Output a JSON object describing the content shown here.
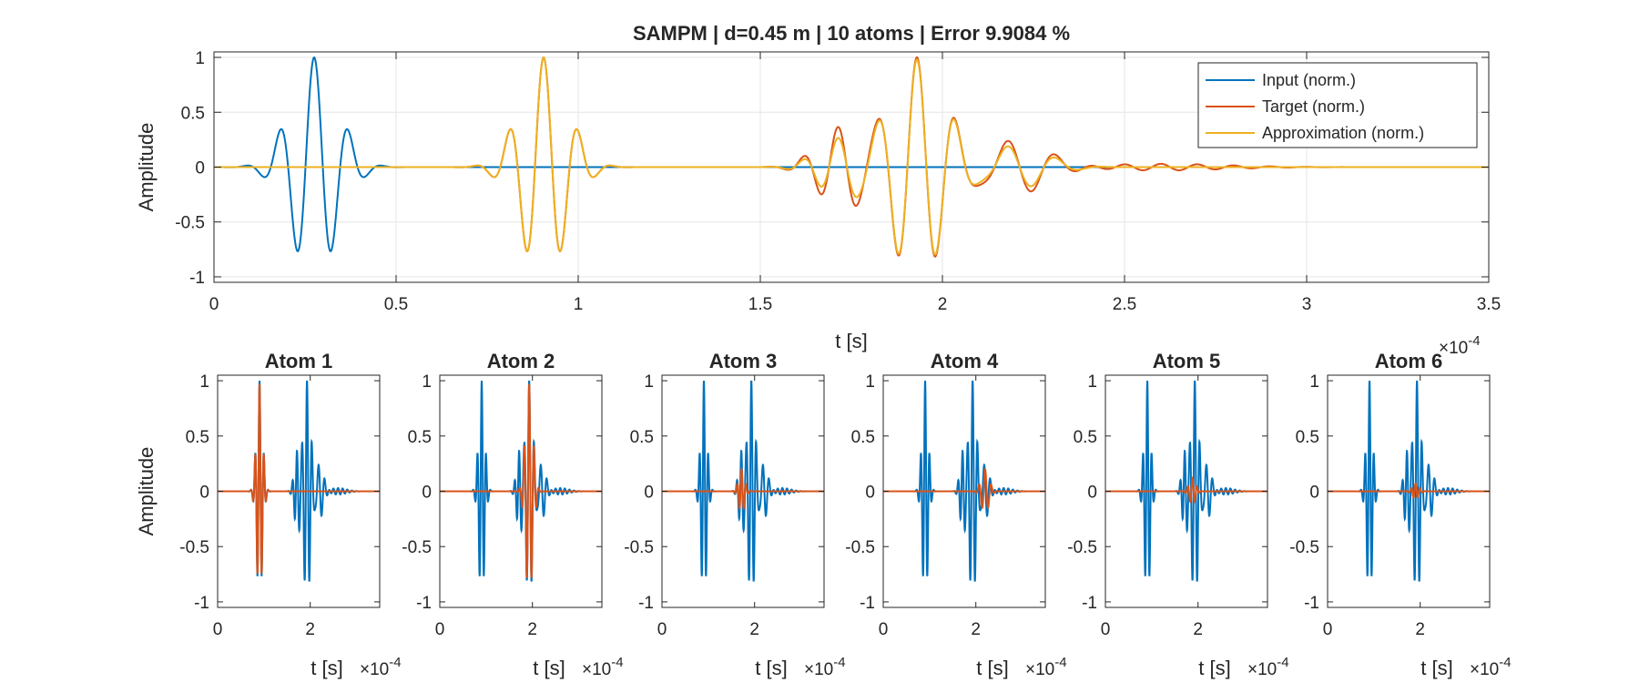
{
  "chart_data": {
    "main": {
      "type": "line",
      "title": "SAMPM | d=0.45 m | 10 atoms | Error 9.9084 %",
      "xlabel": "t [s]",
      "ylabel": "Amplitude",
      "x_exponent": "×10",
      "x_exponent_power": "-4",
      "xlim": [
        0,
        3.5
      ],
      "ylim": [
        -1.05,
        1.05
      ],
      "xticks": [
        0,
        0.5,
        1,
        1.5,
        2,
        2.5,
        3,
        3.5
      ],
      "xtick_labels": [
        "0",
        "0.5",
        "1",
        "1.5",
        "2",
        "2.5",
        "3",
        "3.5"
      ],
      "yticks": [
        -1,
        -0.5,
        0,
        0.5,
        1
      ],
      "ytick_labels": [
        "-1",
        "-0.5",
        "0",
        "0.5",
        "1"
      ],
      "grid": true,
      "legend_position": "top-right",
      "series": [
        {
          "name": "Input (norm.)",
          "color": "#0072BD",
          "bursts": [
            {
              "center": 0.275,
              "width": 0.09,
              "freq": 10.5,
              "amp": 1.0,
              "phase": 0.0
            }
          ]
        },
        {
          "name": "Target (norm.)",
          "color": "#D95319",
          "bursts": [
            {
              "center": 0.905,
              "width": 0.09,
              "freq": 10.5,
              "amp": 1.0,
              "phase": 0.0
            },
            {
              "center": 1.72,
              "width": 0.09,
              "freq": 10.5,
              "amp": 0.35,
              "phase": 0.5
            },
            {
              "center": 1.93,
              "width": 0.11,
              "freq": 9.6,
              "amp": 1.0,
              "phase": 0.0
            },
            {
              "center": 2.2,
              "width": 0.12,
              "freq": 7.5,
              "amp": 0.25,
              "phase": 1.0
            },
            {
              "center": 2.6,
              "width": 0.25,
              "freq": 10.0,
              "amp": 0.03,
              "phase": 0.0
            }
          ]
        },
        {
          "name": "Approximation (norm.)",
          "color": "#EDB120",
          "bursts": [
            {
              "center": 0.905,
              "width": 0.09,
              "freq": 10.5,
              "amp": 1.0,
              "phase": 0.0
            },
            {
              "center": 1.72,
              "width": 0.09,
              "freq": 10.5,
              "amp": 0.25,
              "phase": 0.5
            },
            {
              "center": 1.93,
              "width": 0.11,
              "freq": 9.6,
              "amp": 0.98,
              "phase": 0.0
            },
            {
              "center": 2.2,
              "width": 0.12,
              "freq": 7.5,
              "amp": 0.2,
              "phase": 1.0
            }
          ]
        }
      ]
    },
    "atoms": {
      "type": "line",
      "ylabel": "Amplitude",
      "xlabel": "t [s]",
      "x_exponent": "×10",
      "x_exponent_power": "-4",
      "xlim": [
        0,
        3.5
      ],
      "ylim": [
        -1.05,
        1.05
      ],
      "xticks": [
        0,
        2
      ],
      "xtick_labels": [
        "0",
        "2"
      ],
      "yticks": [
        -1,
        -0.5,
        0,
        0.5,
        1
      ],
      "ytick_labels": [
        "-1",
        "-0.5",
        "0",
        "0.5",
        "1"
      ],
      "background_series": {
        "name": "Target",
        "color": "#0072BD",
        "bursts": [
          {
            "center": 0.905,
            "width": 0.09,
            "freq": 10.5,
            "amp": 1.0,
            "phase": 0.0
          },
          {
            "center": 1.72,
            "width": 0.09,
            "freq": 10.5,
            "amp": 0.35,
            "phase": 0.5
          },
          {
            "center": 1.93,
            "width": 0.11,
            "freq": 9.6,
            "amp": 1.0,
            "phase": 0.0
          },
          {
            "center": 2.2,
            "width": 0.12,
            "freq": 7.5,
            "amp": 0.25,
            "phase": 1.0
          },
          {
            "center": 2.6,
            "width": 0.25,
            "freq": 10.0,
            "amp": 0.03,
            "phase": 0.0
          }
        ]
      },
      "atom_color": "#D95319",
      "panels": [
        {
          "title": "Atom 1",
          "center": 0.905,
          "width": 0.09,
          "freq": 10.5,
          "amp": 0.97
        },
        {
          "title": "Atom 2",
          "center": 1.93,
          "width": 0.11,
          "freq": 9.6,
          "amp": 0.97
        },
        {
          "title": "Atom 3",
          "center": 1.72,
          "width": 0.09,
          "freq": 10.5,
          "amp": 0.2
        },
        {
          "title": "Atom 4",
          "center": 2.2,
          "width": 0.12,
          "freq": 7.5,
          "amp": 0.2
        },
        {
          "title": "Atom 5",
          "center": 1.88,
          "width": 0.1,
          "freq": 10.0,
          "amp": 0.12
        },
        {
          "title": "Atom 6",
          "center": 1.9,
          "width": 0.1,
          "freq": 10.5,
          "amp": 0.07
        }
      ]
    }
  }
}
